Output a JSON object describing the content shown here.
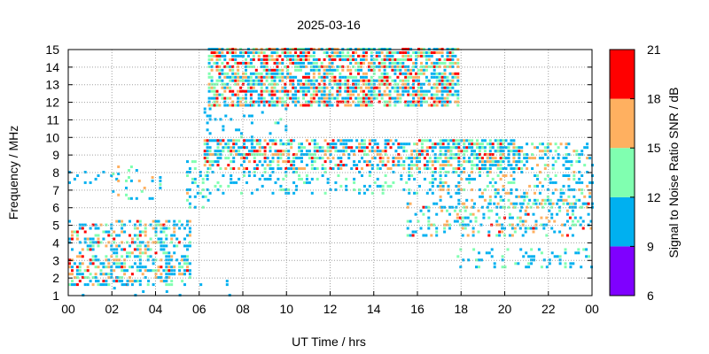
{
  "chart_data": {
    "type": "heatmap",
    "title": "2025-03-16",
    "xlabel": "UT Time / hrs",
    "ylabel": "Frequency / MHz",
    "xlim": [
      0,
      24
    ],
    "ylim": [
      1,
      15
    ],
    "x_ticks": [
      "00",
      "02",
      "04",
      "06",
      "08",
      "10",
      "12",
      "14",
      "16",
      "18",
      "20",
      "22",
      "00"
    ],
    "y_ticks": [
      "1",
      "2",
      "3",
      "4",
      "5",
      "6",
      "7",
      "8",
      "9",
      "10",
      "11",
      "12",
      "13",
      "14",
      "15"
    ],
    "grid": true,
    "colorbar": {
      "label": "Signal to Noise Ratio SNR / dB",
      "range": [
        6,
        21
      ],
      "ticks": [
        "6",
        "9",
        "12",
        "15",
        "18",
        "21"
      ],
      "bands": [
        {
          "from": 6,
          "to": 9,
          "color": "#7f00ff"
        },
        {
          "from": 9,
          "to": 12,
          "color": "#00b0f0"
        },
        {
          "from": 12,
          "to": 15,
          "color": "#80ffb0"
        },
        {
          "from": 15,
          "to": 18,
          "color": "#ffb060"
        },
        {
          "from": 18,
          "to": 21,
          "color": "#ff0000"
        }
      ]
    },
    "regions": [
      {
        "t": [
          0.0,
          5.6
        ],
        "f": [
          1.6,
          5.4
        ],
        "density": 0.42,
        "snr": [
          9,
          19
        ]
      },
      {
        "t": [
          0.0,
          2.6
        ],
        "f": [
          7.4,
          8.2
        ],
        "density": 0.18,
        "snr": [
          9,
          13
        ]
      },
      {
        "t": [
          2.0,
          4.4
        ],
        "f": [
          6.5,
          8.5
        ],
        "density": 0.12,
        "snr": [
          9,
          17
        ]
      },
      {
        "t": [
          5.4,
          6.4
        ],
        "f": [
          6.0,
          9.5
        ],
        "density": 0.22,
        "snr": [
          9,
          16
        ]
      },
      {
        "t": [
          6.4,
          17.8
        ],
        "f": [
          11.8,
          15.0
        ],
        "density": 0.72,
        "snr": [
          10,
          21
        ]
      },
      {
        "t": [
          6.2,
          10.0
        ],
        "f": [
          9.6,
          11.8
        ],
        "density": 0.1,
        "snr": [
          9,
          13
        ]
      },
      {
        "t": [
          6.2,
          20.6
        ],
        "f": [
          8.2,
          9.8
        ],
        "density": 0.55,
        "snr": [
          9,
          21
        ]
      },
      {
        "t": [
          6.2,
          17.0
        ],
        "f": [
          6.8,
          8.2
        ],
        "density": 0.22,
        "snr": [
          9,
          14
        ]
      },
      {
        "t": [
          17.0,
          24.0
        ],
        "f": [
          6.0,
          9.6
        ],
        "density": 0.3,
        "snr": [
          9,
          18
        ]
      },
      {
        "t": [
          15.5,
          24.0
        ],
        "f": [
          4.4,
          6.4
        ],
        "density": 0.3,
        "snr": [
          9,
          19
        ]
      },
      {
        "t": [
          17.8,
          24.0
        ],
        "f": [
          2.6,
          3.8
        ],
        "density": 0.22,
        "snr": [
          9,
          15
        ]
      },
      {
        "t": [
          0.5,
          8.0
        ],
        "f": [
          1.0,
          2.0
        ],
        "density": 0.05,
        "snr": [
          9,
          12
        ]
      }
    ]
  }
}
